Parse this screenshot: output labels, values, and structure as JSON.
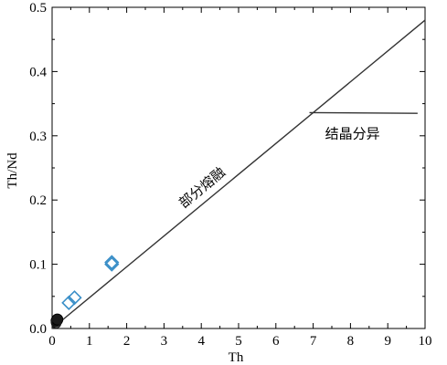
{
  "chart_data": {
    "type": "scatter",
    "xlabel": "Th",
    "ylabel": "Th/Nd",
    "xlim": [
      0,
      10
    ],
    "ylim": [
      0,
      0.5
    ],
    "x_ticks": [
      "0",
      "1",
      "2",
      "3",
      "4",
      "5",
      "6",
      "7",
      "8",
      "9",
      "10"
    ],
    "y_ticks": [
      "0.0",
      "0.1",
      "0.2",
      "0.3",
      "0.4",
      "0.5"
    ],
    "grid": false,
    "series": [
      {
        "marker": "open-diamond",
        "color": "#3a8fc8",
        "points": [
          {
            "x": 0.45,
            "y": 0.04
          },
          {
            "x": 0.6,
            "y": 0.048
          },
          {
            "x": 1.6,
            "y": 0.1
          },
          {
            "x": 1.6,
            "y": 0.103
          }
        ]
      },
      {
        "marker": "filled-circle",
        "color": "#1a1a1a",
        "points": [
          {
            "x": 0.12,
            "y": 0.012
          },
          {
            "x": 0.14,
            "y": 0.014
          }
        ]
      },
      {
        "marker": "open-circle",
        "color": "#1a1a1a",
        "points": [
          {
            "x": 0.1,
            "y": 0.01
          },
          {
            "x": 0.11,
            "y": 0.008
          }
        ]
      }
    ],
    "lines": [
      {
        "label": "部分熔融",
        "from": [
          0,
          0
        ],
        "to": [
          10,
          0.48
        ]
      },
      {
        "label": "结晶分异",
        "from": [
          6.9,
          0.336
        ],
        "to": [
          9.8,
          0.335
        ]
      }
    ]
  }
}
